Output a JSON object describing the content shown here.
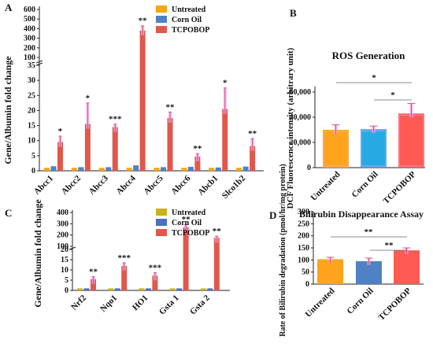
{
  "colors": {
    "untreated": "#f5a70f",
    "corn_oil": "#4f82c4",
    "tcpobop": "#e0584c",
    "ros_untreated": "#ffa41c",
    "ros_corn_oil": "#27a9e3",
    "ros_tcpobop": "#ff5a53",
    "c_untreated": "#c9b21c",
    "c_corn_oil": "#4d6fc2",
    "c_tcpobop": "#e0584c",
    "error_glow": "#f2a6e8"
  },
  "chart_data": [
    {
      "panel": "A",
      "type": "bar",
      "ylabel": "Gene/Albumin fold change",
      "y_ticks_lower": [
        "0",
        "5",
        "10",
        "15",
        "20",
        "25",
        "30",
        "35"
      ],
      "y_ticks_upper": [
        "100",
        "200",
        "300",
        "400",
        "500",
        "600"
      ],
      "ylim_lower": [
        0,
        35
      ],
      "ylim_upper": [
        100,
        600
      ],
      "categories": [
        "Abcc1",
        "Abcc2",
        "Abcc3",
        "Abcc4",
        "Abcc5",
        "Abcc6",
        "Abcb1",
        "Slco1b2"
      ],
      "series": [
        {
          "name": "Untreated",
          "values": [
            1,
            1,
            1,
            1,
            1,
            1,
            1,
            1
          ]
        },
        {
          "name": "Corn Oil",
          "values": [
            1.5,
            1.2,
            1.2,
            1.8,
            1.2,
            1.3,
            1.1,
            1.4
          ]
        },
        {
          "name": "TCPOBOP",
          "values": [
            9.5,
            15.5,
            14.5,
            380,
            17.5,
            4.7,
            20.5,
            8.2
          ]
        }
      ],
      "errors": [
        2,
        7,
        1,
        50,
        2,
        1,
        7,
        2.5
      ],
      "significance": [
        "*",
        "*",
        "***",
        "**",
        "**",
        "**",
        "*",
        "**"
      ]
    },
    {
      "panel": "B",
      "type": "bar",
      "title": "ROS Generation",
      "ylabel": "DCF Fluorescence intensity (arbitrary unit)",
      "y_ticks": [
        "0",
        "20,000",
        "40,000",
        "60,000"
      ],
      "ylim": [
        0,
        60000
      ],
      "categories": [
        "Untreated",
        "Corn Oil",
        "TCPOBOP"
      ],
      "values": [
        30000,
        30500,
        43000
      ],
      "errors": [
        4000,
        2500,
        8000
      ],
      "comparisons": [
        {
          "from": "Untreated",
          "to": "TCPOBOP",
          "label": "*"
        },
        {
          "from": "Corn Oil",
          "to": "TCPOBOP",
          "label": "*"
        }
      ]
    },
    {
      "panel": "C",
      "type": "bar",
      "ylabel": "Gene/Albumin fold change",
      "y_ticks_lower": [
        "0",
        "5",
        "10",
        "15",
        "20"
      ],
      "y_ticks_upper": [
        "100",
        "200",
        "300",
        "400"
      ],
      "ylim_lower": [
        0,
        20
      ],
      "ylim_upper": [
        100,
        400
      ],
      "categories": [
        "Nrf2",
        "Nqo1",
        "HO1",
        "Gsta 1",
        "Gsta 2"
      ],
      "series": [
        {
          "name": "Untreated",
          "values": [
            1,
            1,
            1,
            1,
            1
          ]
        },
        {
          "name": "Corn Oil",
          "values": [
            1,
            1,
            1,
            1,
            1
          ]
        },
        {
          "name": "TCPOBOP",
          "values": [
            5.5,
            12,
            7.2,
            270,
            175
          ]
        }
      ],
      "errors": [
        1.2,
        1.5,
        1.5,
        25,
        15
      ],
      "significance": [
        "**",
        "***",
        "***",
        "**",
        "**"
      ]
    },
    {
      "panel": "D",
      "type": "bar",
      "title": "Bilirubin Disappearance Assay",
      "ylabel": "Rate of Bilirubin degradation (pmol/hr/mg protein)",
      "y_ticks": [
        "0",
        "50",
        "100",
        "150",
        "200",
        "250",
        "300"
      ],
      "ylim": [
        0,
        300
      ],
      "categories": [
        "Untreated",
        "Corn Oil",
        "TCPOBOP"
      ],
      "values": [
        103,
        95,
        140
      ],
      "errors": [
        8,
        13,
        10
      ],
      "comparisons": [
        {
          "from": "Untreated",
          "to": "TCPOBOP",
          "label": "**"
        },
        {
          "from": "Corn Oil",
          "to": "TCPOBOP",
          "label": "**"
        }
      ]
    }
  ]
}
